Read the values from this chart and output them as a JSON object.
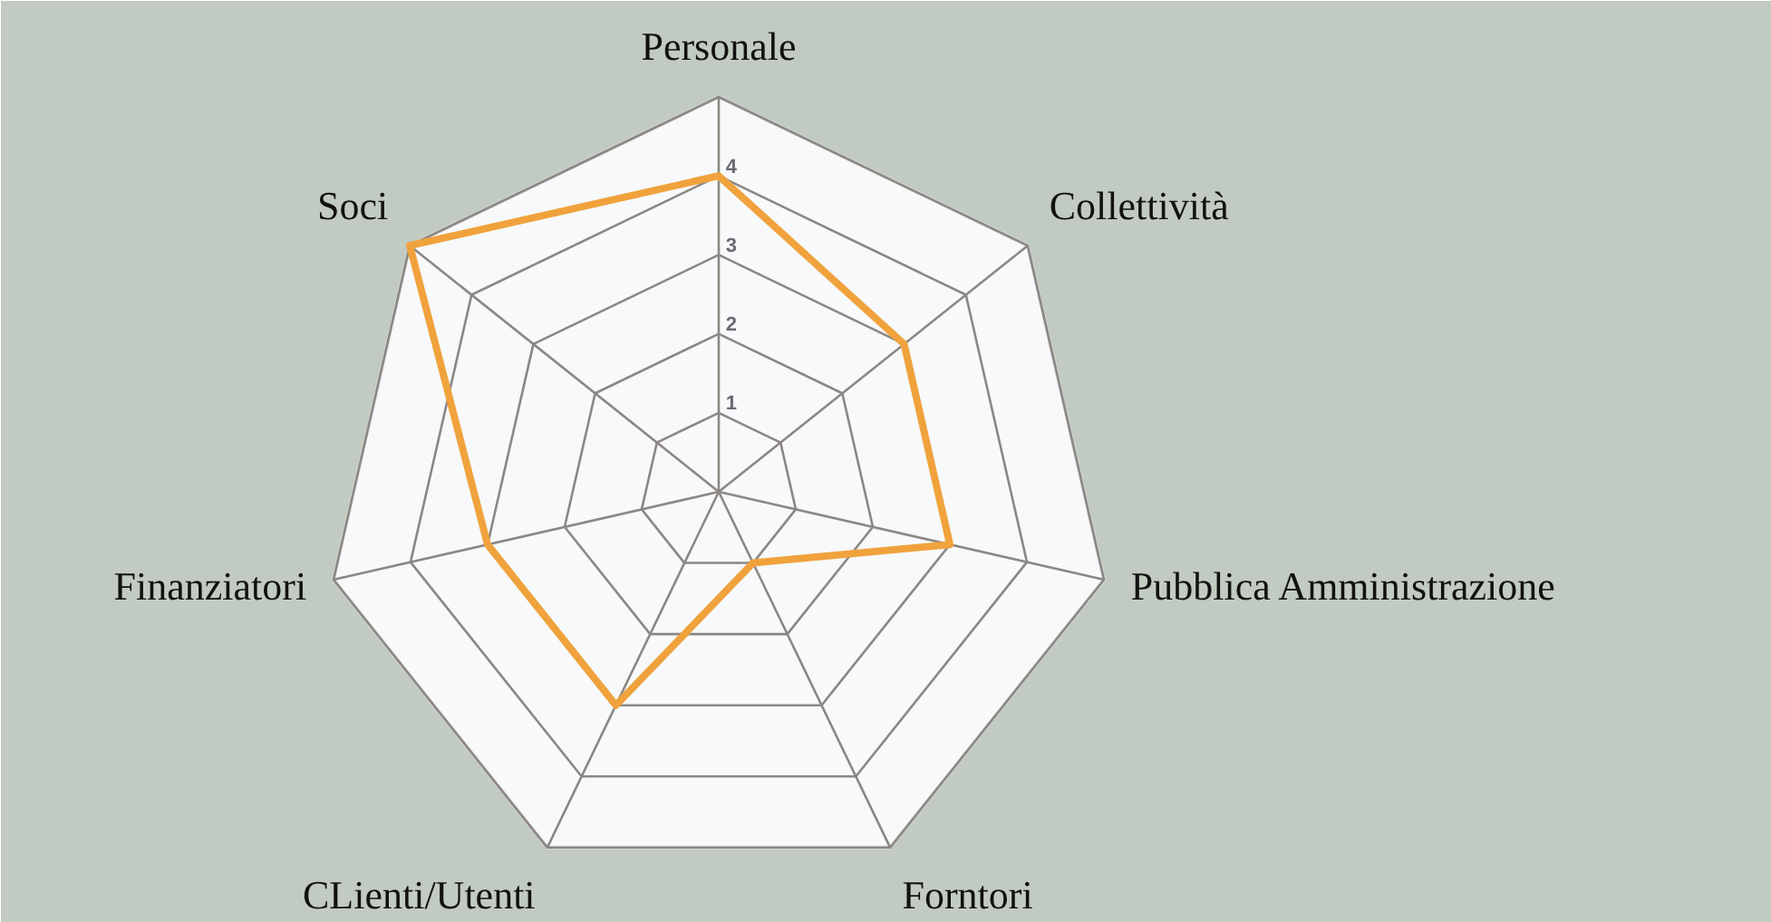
{
  "chart_data": {
    "type": "radar",
    "categories": [
      "Personale",
      "Collettività",
      "Pubblica Amministrazione",
      "Forntori",
      "CLienti/Utenti",
      "Finanziatori",
      "Soci"
    ],
    "series": [
      {
        "color": "#f0a23c",
        "values": [
          4,
          3,
          3,
          1,
          3,
          3,
          5
        ]
      }
    ],
    "ylim": [
      0,
      5
    ],
    "yticks": [
      1,
      2,
      3,
      4
    ],
    "grid": true,
    "marker": "none",
    "line_style": "solid"
  }
}
